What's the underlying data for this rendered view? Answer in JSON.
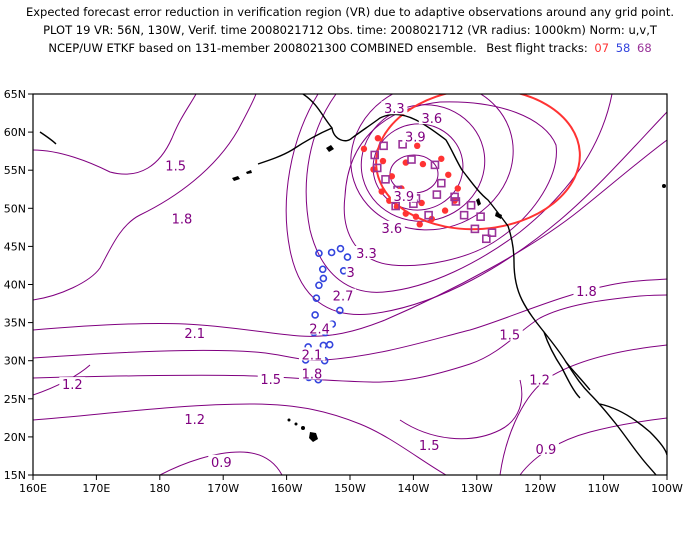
{
  "title": {
    "line1": "Expected forecast error reduction in verification region (VR) due to adaptive observations around any grid point.",
    "line2": "PLOT 19 VR: 56N, 130W, Verif. time 2008021712 Obs. time: 2008021712 (VR radius: 1000km) Norm: u,v,T",
    "line3_prefix": "NCEP/UW ETKF based on 131-member 2008021300 COMBINED ensemble.",
    "tracks_label": "Best flight tracks:",
    "tracks": [
      {
        "id": "07",
        "color": "#ff3333"
      },
      {
        "id": "58",
        "color": "#3344dd"
      },
      {
        "id": "68",
        "color": "#993399"
      }
    ]
  },
  "axes": {
    "lon_ticks": [
      "160E",
      "170E",
      "180",
      "170W",
      "160W",
      "150W",
      "140W",
      "130W",
      "120W",
      "110W",
      "100W"
    ],
    "lat_ticks": [
      "65N",
      "60N",
      "55N",
      "50N",
      "45N",
      "40N",
      "35N",
      "30N",
      "25N",
      "20N",
      "15N"
    ]
  },
  "contour_labels": [
    {
      "text": "1.5",
      "lon": -177.5,
      "lat": 55.5
    },
    {
      "text": "1.8",
      "lon": -176.5,
      "lat": 48.5
    },
    {
      "text": "2.1",
      "lon": -174.5,
      "lat": 33.5
    },
    {
      "text": "1.2",
      "lon": 166.2,
      "lat": 26.8
    },
    {
      "text": "1.5",
      "lon": -162.5,
      "lat": 27.5
    },
    {
      "text": "1.2",
      "lon": -174.5,
      "lat": 22.2
    },
    {
      "text": "0.9",
      "lon": -170.3,
      "lat": 16.6
    },
    {
      "text": "1.5",
      "lon": -137.5,
      "lat": 18.8
    },
    {
      "text": "1.5",
      "lon": -124.8,
      "lat": 33.3
    },
    {
      "text": "1.2",
      "lon": -120.1,
      "lat": 27.4
    },
    {
      "text": "0.9",
      "lon": -119.1,
      "lat": 18.3
    },
    {
      "text": "1.8",
      "lon": -112.7,
      "lat": 39.0
    },
    {
      "text": "3.6",
      "lon": -137.1,
      "lat": 61.7
    },
    {
      "text": "3.9",
      "lon": -139.7,
      "lat": 59.3
    },
    {
      "text": "3.9",
      "lon": -141.5,
      "lat": 51.5
    },
    {
      "text": "3.6",
      "lon": -143.4,
      "lat": 47.3
    },
    {
      "text": "3.3",
      "lon": -147.4,
      "lat": 44.0
    },
    {
      "text": "3",
      "lon": -149.9,
      "lat": 41.5
    },
    {
      "text": "2.7",
      "lon": -151.1,
      "lat": 38.4
    },
    {
      "text": "2.4",
      "lon": -154.8,
      "lat": 34.1
    },
    {
      "text": "2.1",
      "lon": -156.0,
      "lat": 30.7
    },
    {
      "text": "1.8",
      "lon": -156.0,
      "lat": 28.2
    },
    {
      "text": "3.3",
      "lon": -143.0,
      "lat": 63.0
    }
  ],
  "tracks_07_points": [
    [
      -147.8,
      57.8
    ],
    [
      -145.6,
      59.2
    ],
    [
      -144.8,
      56.2
    ],
    [
      -146.3,
      55.1
    ],
    [
      -145.0,
      52.2
    ],
    [
      -143.8,
      51.0
    ],
    [
      -142.6,
      50.2
    ],
    [
      -141.2,
      49.3
    ],
    [
      -139.6,
      48.9
    ],
    [
      -138.7,
      50.7
    ],
    [
      -141.9,
      52.6
    ],
    [
      -141.2,
      56.0
    ],
    [
      -139.4,
      58.2
    ],
    [
      -135.6,
      56.5
    ],
    [
      -134.5,
      54.4
    ],
    [
      -133.0,
      52.6
    ],
    [
      -133.5,
      51.0
    ],
    [
      -135.0,
      49.7
    ],
    [
      -137.1,
      48.6
    ],
    [
      -139.0,
      47.9
    ],
    [
      -138.5,
      55.8
    ],
    [
      -143.4,
      54.2
    ]
  ],
  "tracks_58_points": [
    [
      -156.5,
      27.8
    ],
    [
      -155.0,
      27.5
    ],
    [
      -154.0,
      30.0
    ],
    [
      -154.2,
      32.0
    ],
    [
      -153.9,
      33.7
    ],
    [
      -152.8,
      34.8
    ],
    [
      -151.6,
      36.6
    ],
    [
      -151.0,
      38.7
    ],
    [
      -151.0,
      41.8
    ],
    [
      -150.4,
      43.6
    ],
    [
      -151.5,
      44.7
    ],
    [
      -154.9,
      44.1
    ],
    [
      -154.3,
      42.0
    ],
    [
      -154.9,
      39.9
    ],
    [
      -155.3,
      38.2
    ],
    [
      -155.5,
      36.0
    ],
    [
      -155.7,
      33.7
    ],
    [
      -156.6,
      31.8
    ],
    [
      -157.0,
      30.1
    ],
    [
      -152.9,
      44.2
    ],
    [
      -154.2,
      40.8
    ],
    [
      -153.2,
      32.1
    ]
  ],
  "tracks_68_points": [
    [
      -144.7,
      58.2
    ],
    [
      -141.7,
      58.4
    ],
    [
      -140.3,
      56.4
    ],
    [
      -136.6,
      55.7
    ],
    [
      -135.6,
      53.3
    ],
    [
      -133.3,
      50.9
    ],
    [
      -132.0,
      49.1
    ],
    [
      -130.3,
      47.3
    ],
    [
      -128.5,
      46.0
    ],
    [
      -127.6,
      46.8
    ],
    [
      -129.4,
      48.9
    ],
    [
      -130.9,
      50.4
    ],
    [
      -133.5,
      51.5
    ],
    [
      -136.3,
      51.8
    ],
    [
      -139.6,
      51.3
    ],
    [
      -142.5,
      52.4
    ],
    [
      -144.4,
      53.8
    ],
    [
      -145.7,
      55.3
    ],
    [
      -146.1,
      57.0
    ],
    [
      -142.8,
      50.3
    ],
    [
      -137.6,
      49.1
    ],
    [
      -140.0,
      50.6
    ]
  ]
}
